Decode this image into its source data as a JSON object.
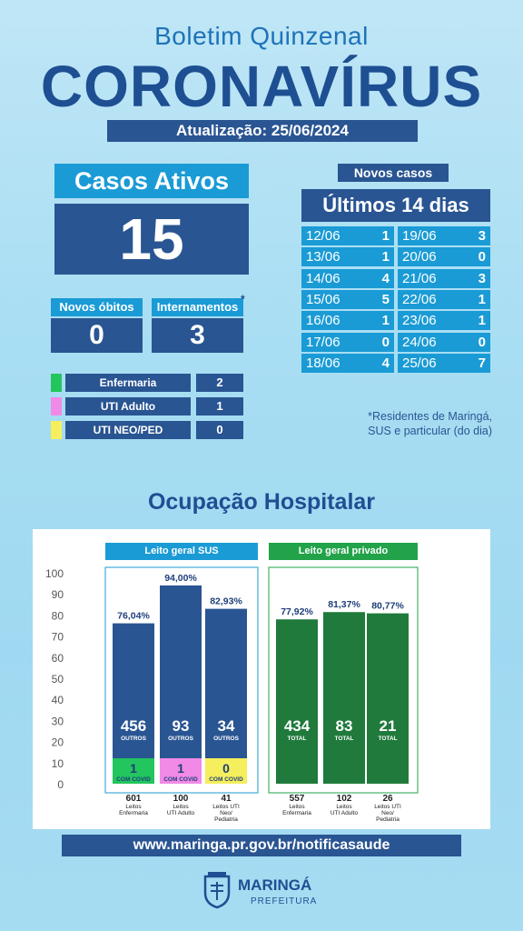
{
  "header": {
    "subtitle": "Boletim Quinzenal",
    "title": "CORONAVÍRUS",
    "update": "Atualização: 25/06/2024"
  },
  "casos_ativos": {
    "label": "Casos Ativos",
    "value": "15"
  },
  "novos_obitos": {
    "label": "Novos óbitos",
    "value": "0"
  },
  "internamentos": {
    "label": "Internamentos",
    "asterisk": "*",
    "value": "3"
  },
  "legend": [
    {
      "name": "Enfermaria",
      "value": "2",
      "color": "#22c55e"
    },
    {
      "name": "UTI Adulto",
      "value": "1",
      "color": "#f08ae6"
    },
    {
      "name": "UTI NEO/PED",
      "value": "0",
      "color": "#f5ef5e"
    }
  ],
  "novos_casos": {
    "label": "Novos casos",
    "period": "Últimos 14 dias",
    "left": [
      {
        "date": "12/06",
        "value": "1"
      },
      {
        "date": "13/06",
        "value": "1"
      },
      {
        "date": "14/06",
        "value": "4"
      },
      {
        "date": "15/06",
        "value": "5"
      },
      {
        "date": "16/06",
        "value": "1"
      },
      {
        "date": "17/06",
        "value": "0"
      },
      {
        "date": "18/06",
        "value": "4"
      }
    ],
    "right": [
      {
        "date": "19/06",
        "value": "3"
      },
      {
        "date": "20/06",
        "value": "0"
      },
      {
        "date": "21/06",
        "value": "3"
      },
      {
        "date": "22/06",
        "value": "1"
      },
      {
        "date": "23/06",
        "value": "1"
      },
      {
        "date": "24/06",
        "value": "0"
      },
      {
        "date": "25/06",
        "value": "7"
      }
    ]
  },
  "footnote": {
    "line1": "*Residentes de Maringá,",
    "line2": "SUS e particular (do dia)"
  },
  "occupation": {
    "title": "Ocupação Hospitalar",
    "sus_label": "Leito geral SUS",
    "priv_label": "Leito geral privado"
  },
  "chart_data": {
    "type": "bar",
    "ylim": [
      0,
      100
    ],
    "yticks": [
      "100",
      "90",
      "80",
      "70",
      "60",
      "50",
      "40",
      "30",
      "20",
      "10",
      "0"
    ],
    "colors": {
      "sus": "#2a5593",
      "priv": "#1f7a3c",
      "covid_enf": "#22c55e",
      "covid_uti": "#f08ae6",
      "covid_neo": "#f5ef5e"
    },
    "bars": [
      {
        "group": "sus",
        "pct": 76.04,
        "pct_label": "76,04%",
        "outros": "456",
        "outros_label": "OUTROS",
        "covid": "1",
        "covid_label": "COM COVID",
        "covid_color": "#22c55e",
        "total": "601",
        "name": "Leitos Enfermaria"
      },
      {
        "group": "sus",
        "pct": 94.0,
        "pct_label": "94,00%",
        "outros": "93",
        "outros_label": "OUTROS",
        "covid": "1",
        "covid_label": "COM COVID",
        "covid_color": "#f08ae6",
        "total": "100",
        "name": "Leitos UTI Adulto"
      },
      {
        "group": "sus",
        "pct": 82.93,
        "pct_label": "82,93%",
        "outros": "34",
        "outros_label": "OUTROS",
        "covid": "0",
        "covid_label": "COM COVID",
        "covid_color": "#f5ef5e",
        "total": "41",
        "name": "Leitos UTI Neo/ Pediatria"
      },
      {
        "group": "priv",
        "pct": 77.92,
        "pct_label": "77,92%",
        "outros": "434",
        "outros_label": "TOTAL",
        "total": "557",
        "name": "Leitos Enfermaria"
      },
      {
        "group": "priv",
        "pct": 81.37,
        "pct_label": "81,37%",
        "outros": "83",
        "outros_label": "TOTAL",
        "total": "102",
        "name": "Leitos UTI Adulto"
      },
      {
        "group": "priv",
        "pct": 80.77,
        "pct_label": "80,77%",
        "outros": "21",
        "outros_label": "TOTAL",
        "total": "26",
        "name": "Leitos UTI Neo/ Pediatria"
      }
    ]
  },
  "footer": {
    "url": "www.maringa.pr.gov.br/notificasaude",
    "logo_name": "MARINGÁ",
    "logo_sub": "PREFEITURA"
  }
}
